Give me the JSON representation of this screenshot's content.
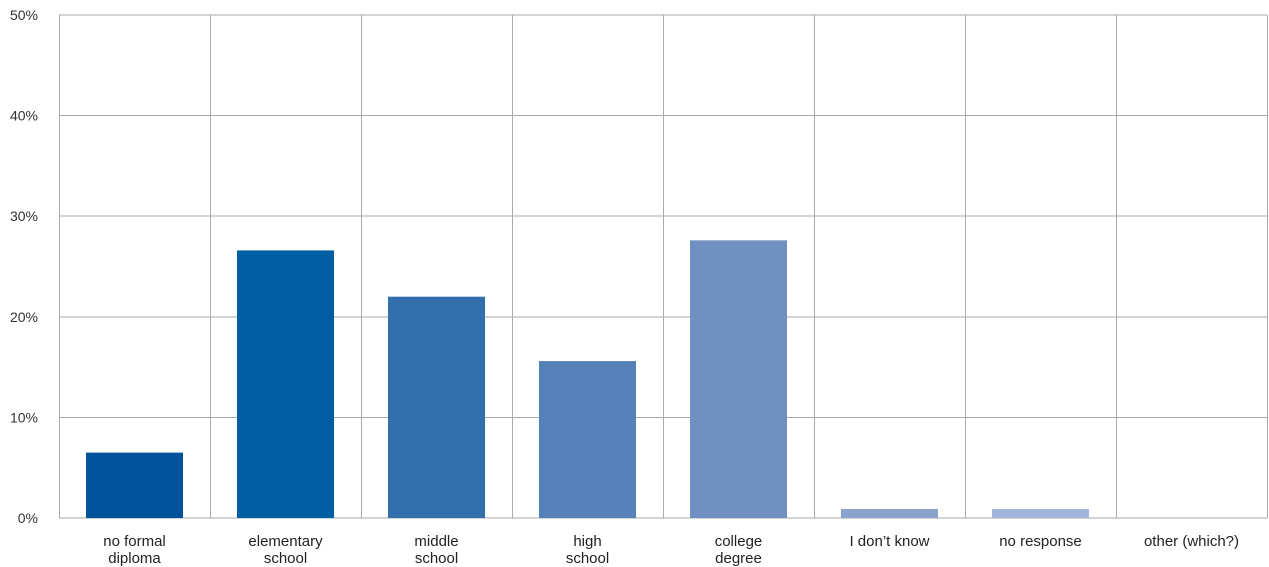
{
  "chart_data": {
    "type": "bar",
    "categories": [
      [
        "no formal",
        "diploma"
      ],
      [
        "elementary",
        "school"
      ],
      [
        "middle",
        "school"
      ],
      [
        "high",
        "school"
      ],
      [
        "college",
        "degree"
      ],
      [
        "I don’t know"
      ],
      [
        "no response"
      ],
      [
        "other (which?)"
      ]
    ],
    "values": [
      6.5,
      26.6,
      22.0,
      15.6,
      27.6,
      0.9,
      0.9,
      0
    ],
    "ylim": [
      0,
      50
    ],
    "yticks": [
      "0%",
      "10%",
      "20%",
      "30%",
      "40%",
      "50%"
    ],
    "ytick_values": [
      0,
      10,
      20,
      30,
      40,
      50
    ],
    "grid": true,
    "bar_colors": [
      "#00539b",
      "#005fa3",
      "#336fad",
      "#5580b8",
      "#7090c2",
      "#8aa3cd",
      "#a2b6dc",
      "#b8c8e6"
    ],
    "grid_color": "#aaaaaa"
  }
}
